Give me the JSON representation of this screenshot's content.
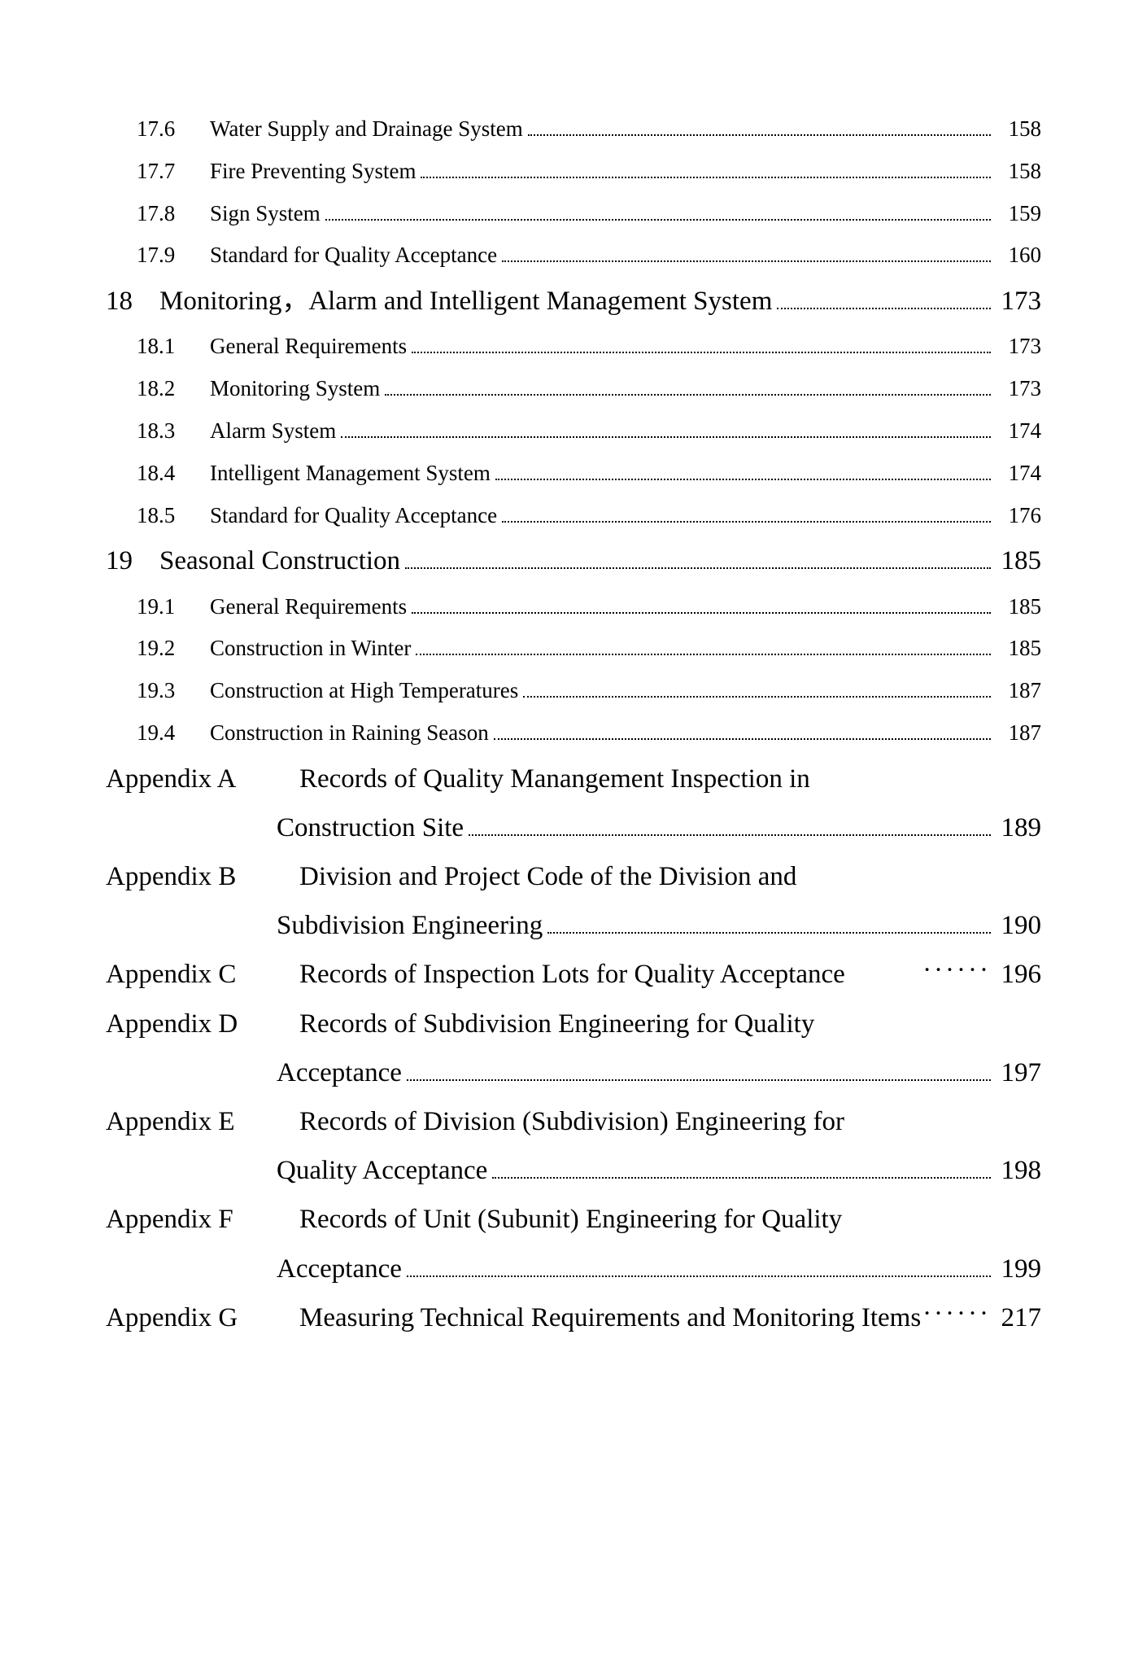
{
  "entries": [
    {
      "type": "subsection",
      "num": "17.6",
      "title": "Water Supply and Drainage System",
      "page": "158"
    },
    {
      "type": "subsection",
      "num": "17.7",
      "title": "Fire Preventing System",
      "page": "158"
    },
    {
      "type": "subsection",
      "num": "17.8",
      "title": "Sign System",
      "page": "159"
    },
    {
      "type": "subsection",
      "num": "17.9",
      "title": "Standard for Quality Acceptance",
      "page": "160"
    },
    {
      "type": "chapter",
      "num": "18",
      "title": "Monitoring，Alarm and Intelligent Management System",
      "page": "173"
    },
    {
      "type": "subsection",
      "num": "18.1",
      "title": "General Requirements",
      "page": "173"
    },
    {
      "type": "subsection",
      "num": "18.2",
      "title": "Monitoring System",
      "page": "173"
    },
    {
      "type": "subsection",
      "num": "18.3",
      "title": "Alarm System",
      "page": "174"
    },
    {
      "type": "subsection",
      "num": "18.4",
      "title": "Intelligent Management System",
      "page": "174"
    },
    {
      "type": "subsection",
      "num": "18.5",
      "title": "Standard for Quality Acceptance",
      "page": "176"
    },
    {
      "type": "chapter",
      "num": "19",
      "title": "Seasonal Construction",
      "page": "185"
    },
    {
      "type": "subsection",
      "num": "19.1",
      "title": "General Requirements",
      "page": "185"
    },
    {
      "type": "subsection",
      "num": "19.2",
      "title": "Construction in Winter",
      "page": "185"
    },
    {
      "type": "subsection",
      "num": "19.3",
      "title": "Construction at High Temperatures",
      "page": "187"
    },
    {
      "type": "subsection",
      "num": "19.4",
      "title": "Construction in Raining Season",
      "page": "187"
    },
    {
      "type": "appendix-multi",
      "num": "Appendix A",
      "title1": "Records of Quality Manangement Inspection in",
      "title2": "Construction Site",
      "page": "189"
    },
    {
      "type": "appendix-multi",
      "num": "Appendix B",
      "title1": "Division and Project Code of the Division and",
      "title2": "Subdivision Engineering",
      "page": "190"
    },
    {
      "type": "appendix",
      "num": "Appendix C",
      "title": "Records of Inspection Lots for Quality Acceptance",
      "page": "196",
      "shortdots": true
    },
    {
      "type": "appendix-multi",
      "num": "Appendix D",
      "title1": "Records of Subdivision Engineering for Quality",
      "title2": "Acceptance",
      "page": "197"
    },
    {
      "type": "appendix-multi",
      "num": "Appendix E",
      "title1": "Records of Division (Subdivision) Engineering for",
      "title2": "Quality Acceptance",
      "page": "198"
    },
    {
      "type": "appendix-multi",
      "num": "Appendix F",
      "title1": "Records of Unit (Subunit) Engineering for Quality",
      "title2": "Acceptance",
      "page": "199"
    },
    {
      "type": "appendix",
      "num": "Appendix G",
      "title": "Measuring Technical Requirements and Monitoring Items",
      "page": "217",
      "shortdots": true
    }
  ]
}
